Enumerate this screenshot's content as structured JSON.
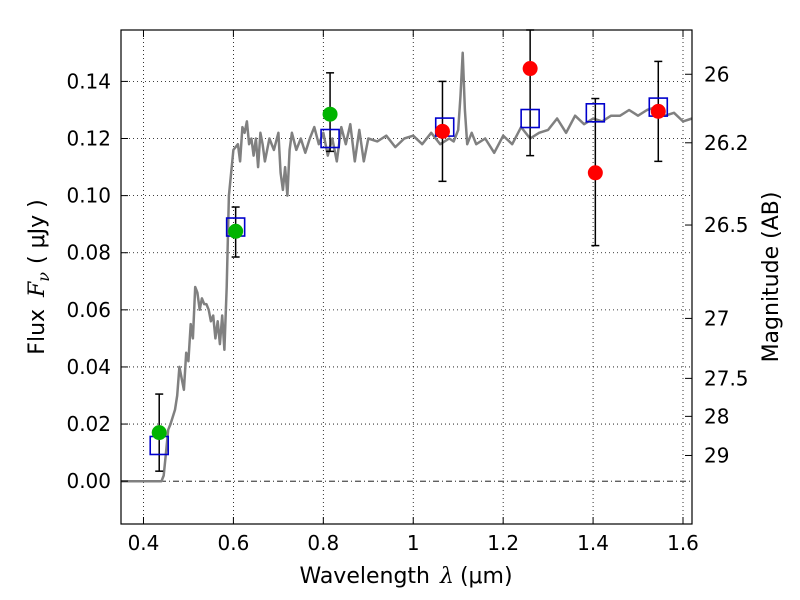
{
  "chart_data": {
    "type": "scatter",
    "xlabel_prefix": "Wavelength",
    "xlabel_symbol": "λ",
    "xlabel_unit": "(μm)",
    "ylabel_prefix": "Flux",
    "ylabel_symbol": "F",
    "ylabel_subscript": "ν",
    "ylabel_unit": "( μJy )",
    "y2label": "Magnitude (AB)",
    "xlim": [
      0.35,
      1.62
    ],
    "ylim": [
      -0.015,
      0.158
    ],
    "grid": true,
    "x_ticks": [
      "0.4",
      "0.6",
      "0.8",
      "1",
      "1.2",
      "1.4",
      "1.6"
    ],
    "x_tick_values": [
      0.4,
      0.6,
      0.8,
      1.0,
      1.2,
      1.4,
      1.6
    ],
    "y_ticks": [
      "0.00",
      "0.02",
      "0.04",
      "0.06",
      "0.08",
      "0.10",
      "0.12",
      "0.14"
    ],
    "y_tick_values": [
      0.0,
      0.02,
      0.04,
      0.06,
      0.08,
      0.1,
      0.12,
      0.14
    ],
    "y2_ticks": [
      "26",
      "26.2",
      "26.5",
      "27",
      "27.5",
      "28",
      "29"
    ],
    "y2_tick_flux": [
      0.1425,
      0.1185,
      0.0897,
      0.057,
      0.036,
      0.0227,
      0.009
    ],
    "model_spectrum": {
      "color": "#808080",
      "x": [
        0.35,
        0.43,
        0.435,
        0.44,
        0.445,
        0.45,
        0.455,
        0.46,
        0.47,
        0.475,
        0.48,
        0.49,
        0.495,
        0.5,
        0.505,
        0.51,
        0.515,
        0.52,
        0.525,
        0.53,
        0.535,
        0.54,
        0.545,
        0.55,
        0.555,
        0.56,
        0.565,
        0.57,
        0.575,
        0.58,
        0.585,
        0.59,
        0.6,
        0.61,
        0.615,
        0.62,
        0.625,
        0.63,
        0.635,
        0.64,
        0.645,
        0.65,
        0.655,
        0.66,
        0.665,
        0.67,
        0.68,
        0.69,
        0.7,
        0.705,
        0.71,
        0.715,
        0.72,
        0.725,
        0.73,
        0.74,
        0.75,
        0.76,
        0.77,
        0.78,
        0.79,
        0.8,
        0.81,
        0.82,
        0.83,
        0.84,
        0.85,
        0.86,
        0.87,
        0.88,
        0.89,
        0.9,
        0.92,
        0.94,
        0.96,
        0.98,
        1.0,
        1.02,
        1.04,
        1.06,
        1.08,
        1.09,
        1.1,
        1.105,
        1.11,
        1.115,
        1.12,
        1.13,
        1.14,
        1.16,
        1.18,
        1.2,
        1.22,
        1.24,
        1.26,
        1.28,
        1.3,
        1.32,
        1.34,
        1.36,
        1.38,
        1.4,
        1.42,
        1.44,
        1.46,
        1.48,
        1.5,
        1.52,
        1.54,
        1.56,
        1.58,
        1.6,
        1.62
      ],
      "y": [
        0.0,
        0.0,
        0.0,
        0.0,
        0.002,
        0.01,
        0.018,
        0.02,
        0.025,
        0.03,
        0.04,
        0.032,
        0.045,
        0.042,
        0.055,
        0.05,
        0.068,
        0.066,
        0.06,
        0.064,
        0.062,
        0.062,
        0.06,
        0.056,
        0.058,
        0.05,
        0.056,
        0.048,
        0.058,
        0.046,
        0.068,
        0.1,
        0.116,
        0.118,
        0.112,
        0.124,
        0.122,
        0.126,
        0.118,
        0.12,
        0.114,
        0.12,
        0.11,
        0.122,
        0.118,
        0.112,
        0.12,
        0.116,
        0.122,
        0.108,
        0.102,
        0.11,
        0.1,
        0.116,
        0.122,
        0.116,
        0.12,
        0.115,
        0.12,
        0.124,
        0.118,
        0.122,
        0.114,
        0.12,
        0.112,
        0.124,
        0.118,
        0.125,
        0.112,
        0.123,
        0.112,
        0.12,
        0.119,
        0.121,
        0.117,
        0.12,
        0.121,
        0.118,
        0.122,
        0.118,
        0.12,
        0.119,
        0.123,
        0.135,
        0.15,
        0.13,
        0.118,
        0.122,
        0.118,
        0.12,
        0.115,
        0.121,
        0.118,
        0.124,
        0.12,
        0.122,
        0.123,
        0.127,
        0.122,
        0.128,
        0.125,
        0.127,
        0.126,
        0.128,
        0.128,
        0.13,
        0.128,
        0.13,
        0.131,
        0.128,
        0.129,
        0.126,
        0.127
      ]
    },
    "series": [
      {
        "marker": "square",
        "color": "#0000cc",
        "x": [
          0.435,
          0.605,
          0.815,
          1.07,
          1.26,
          1.405,
          1.545
        ],
        "values": [
          0.0125,
          0.089,
          0.12,
          0.124,
          0.127,
          0.129,
          0.131
        ]
      },
      {
        "marker": "circle",
        "color": "#00b400",
        "x": [
          0.435,
          0.605,
          0.815
        ],
        "values": [
          0.017,
          0.0875,
          0.1285
        ],
        "err_low": [
          0.0035,
          0.0785,
          0.1155
        ],
        "err_high": [
          0.0305,
          0.096,
          0.143
        ]
      },
      {
        "marker": "circle",
        "color": "#ff0000",
        "x": [
          1.065,
          1.26,
          1.405,
          1.545
        ],
        "values": [
          0.1225,
          0.1445,
          0.108,
          0.1295
        ],
        "err_low": [
          0.105,
          0.114,
          0.0825,
          0.112
        ],
        "err_high": [
          0.14,
          0.158,
          0.134,
          0.147
        ]
      }
    ]
  }
}
